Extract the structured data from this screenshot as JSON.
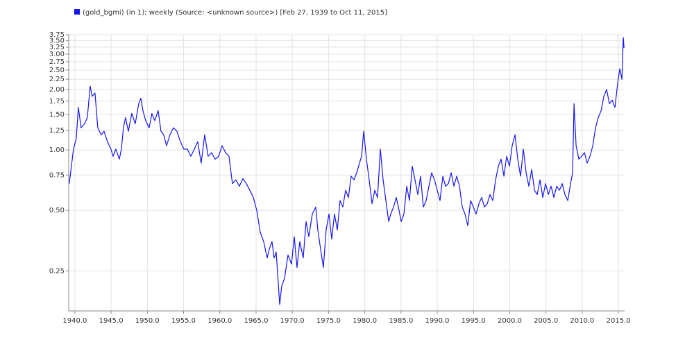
{
  "chart_data": {
    "type": "line",
    "x": [
      1939.23,
      1939.52,
      1939.81,
      1940.19,
      1940.48,
      1940.86,
      1941.34,
      1941.72,
      1942.11,
      1942.39,
      1942.78,
      1943.16,
      1943.64,
      1944.02,
      1944.5,
      1944.98,
      1945.27,
      1945.65,
      1946.13,
      1946.42,
      1946.7,
      1946.99,
      1947.38,
      1947.85,
      1948.33,
      1948.81,
      1949.1,
      1949.39,
      1949.77,
      1950.25,
      1950.63,
      1951.02,
      1951.49,
      1951.88,
      1952.26,
      1952.64,
      1953.12,
      1953.6,
      1954.08,
      1954.56,
      1955.04,
      1955.52,
      1956.0,
      1956.48,
      1956.95,
      1957.43,
      1957.91,
      1958.39,
      1958.87,
      1959.35,
      1959.83,
      1960.31,
      1960.79,
      1961.26,
      1961.74,
      1962.22,
      1962.7,
      1963.18,
      1963.66,
      1964.14,
      1964.62,
      1965.1,
      1965.57,
      1966.05,
      1966.53,
      1966.82,
      1967.2,
      1967.49,
      1967.78,
      1968.26,
      1968.54,
      1968.93,
      1969.41,
      1969.89,
      1970.27,
      1970.65,
      1971.03,
      1971.51,
      1971.9,
      1972.28,
      1972.76,
      1973.24,
      1973.52,
      1973.91,
      1974.29,
      1974.67,
      1975.06,
      1975.44,
      1975.82,
      1976.21,
      1976.59,
      1976.97,
      1977.36,
      1977.74,
      1978.12,
      1978.51,
      1978.89,
      1979.27,
      1979.56,
      1979.85,
      1980.23,
      1980.61,
      1981.0,
      1981.38,
      1981.76,
      1982.15,
      1982.53,
      1982.91,
      1983.3,
      1983.58,
      1983.97,
      1984.35,
      1984.64,
      1985.02,
      1985.4,
      1985.79,
      1986.17,
      1986.55,
      1986.93,
      1987.32,
      1987.7,
      1988.08,
      1988.47,
      1988.85,
      1989.23,
      1989.62,
      1990.0,
      1990.38,
      1990.77,
      1991.15,
      1991.53,
      1991.92,
      1992.3,
      1992.68,
      1993.07,
      1993.45,
      1993.83,
      1994.21,
      1994.6,
      1994.98,
      1995.36,
      1995.75,
      1996.13,
      1996.51,
      1996.9,
      1997.28,
      1997.66,
      1998.05,
      1998.43,
      1998.81,
      1999.2,
      1999.58,
      1999.96,
      2000.34,
      2000.73,
      2001.11,
      2001.49,
      2001.88,
      2002.26,
      2002.64,
      2003.03,
      2003.41,
      2003.79,
      2004.18,
      2004.56,
      2004.94,
      2005.33,
      2005.71,
      2006.09,
      2006.48,
      2006.86,
      2007.24,
      2007.62,
      2008.01,
      2008.39,
      2008.68,
      2008.87,
      2009.16,
      2009.54,
      2009.92,
      2010.31,
      2010.69,
      2011.07,
      2011.46,
      2011.84,
      2012.22,
      2012.61,
      2012.99,
      2013.37,
      2013.75,
      2014.14,
      2014.52,
      2014.9,
      2015.19,
      2015.48,
      2015.67,
      2015.77
    ],
    "series": [
      {
        "name": "(gold_bgmi) (in 1); weekly (Source: <unknown source>) [Feb 27, 1939 to Oct 11, 2015]",
        "color": "#1414f0",
        "values": [
          0.68,
          0.83,
          1.01,
          1.14,
          1.63,
          1.29,
          1.35,
          1.45,
          2.08,
          1.85,
          1.92,
          1.29,
          1.19,
          1.24,
          1.1,
          1.01,
          0.93,
          1.01,
          0.9,
          1.01,
          1.29,
          1.45,
          1.24,
          1.52,
          1.35,
          1.7,
          1.81,
          1.57,
          1.4,
          1.29,
          1.52,
          1.4,
          1.57,
          1.24,
          1.19,
          1.05,
          1.19,
          1.29,
          1.24,
          1.1,
          1.01,
          1.01,
          0.93,
          1.01,
          1.1,
          0.86,
          1.19,
          0.93,
          0.97,
          0.9,
          0.93,
          1.05,
          0.97,
          0.93,
          0.68,
          0.71,
          0.66,
          0.72,
          0.68,
          0.63,
          0.58,
          0.5,
          0.39,
          0.35,
          0.29,
          0.32,
          0.35,
          0.29,
          0.31,
          0.17,
          0.21,
          0.23,
          0.3,
          0.27,
          0.37,
          0.26,
          0.35,
          0.29,
          0.44,
          0.37,
          0.48,
          0.52,
          0.4,
          0.32,
          0.26,
          0.4,
          0.48,
          0.36,
          0.48,
          0.4,
          0.56,
          0.52,
          0.63,
          0.58,
          0.74,
          0.71,
          0.77,
          0.86,
          0.93,
          1.24,
          0.9,
          0.71,
          0.54,
          0.63,
          0.58,
          1.01,
          0.71,
          0.56,
          0.44,
          0.48,
          0.52,
          0.58,
          0.52,
          0.44,
          0.48,
          0.66,
          0.56,
          0.83,
          0.71,
          0.6,
          0.74,
          0.52,
          0.56,
          0.66,
          0.77,
          0.71,
          0.63,
          0.56,
          0.74,
          0.66,
          0.68,
          0.77,
          0.66,
          0.74,
          0.66,
          0.52,
          0.48,
          0.42,
          0.56,
          0.52,
          0.48,
          0.54,
          0.58,
          0.52,
          0.54,
          0.6,
          0.56,
          0.71,
          0.83,
          0.9,
          0.74,
          0.93,
          0.83,
          1.05,
          1.19,
          0.9,
          0.74,
          1.01,
          0.77,
          0.66,
          0.8,
          0.63,
          0.6,
          0.71,
          0.58,
          0.68,
          0.6,
          0.66,
          0.58,
          0.66,
          0.63,
          0.68,
          0.6,
          0.56,
          0.68,
          0.77,
          1.7,
          1.05,
          0.9,
          0.93,
          0.97,
          0.86,
          0.93,
          1.05,
          1.29,
          1.45,
          1.57,
          1.85,
          2.0,
          1.7,
          1.77,
          1.63,
          2.16,
          2.54,
          2.25,
          3.63,
          3.22
        ]
      }
    ],
    "xlim": [
      1939.15,
      2015.85
    ],
    "xticks": [
      {
        "value": 1940,
        "label": "1940.0"
      },
      {
        "value": 1945,
        "label": "1945.0"
      },
      {
        "value": 1950,
        "label": "1950.0"
      },
      {
        "value": 1955,
        "label": "1955.0"
      },
      {
        "value": 1960,
        "label": "1960.0"
      },
      {
        "value": 1965,
        "label": "1965.0"
      },
      {
        "value": 1970,
        "label": "1970.0"
      },
      {
        "value": 1975,
        "label": "1975.0"
      },
      {
        "value": 1980,
        "label": "1980.0"
      },
      {
        "value": 1985,
        "label": "1985.0"
      },
      {
        "value": 1990,
        "label": "1990.0"
      },
      {
        "value": 1995,
        "label": "1995.0"
      },
      {
        "value": 2000,
        "label": "2000.0"
      },
      {
        "value": 2005,
        "label": "2005.0"
      },
      {
        "value": 2010,
        "label": "2010.0"
      },
      {
        "value": 2015,
        "label": "2015.0"
      }
    ],
    "ylim": [
      0.158,
      3.75
    ],
    "yticks": [
      0.25,
      {
        "value": 0.5,
        "label": "0.50"
      },
      0.75,
      {
        "value": 1,
        "label": "1.00"
      },
      1.25,
      {
        "value": 1.5,
        "label": "1.50"
      },
      1.75,
      {
        "value": 2,
        "label": "2.00"
      },
      2.25,
      {
        "value": 2.5,
        "label": "2.50"
      },
      2.75,
      {
        "value": 3,
        "label": "3.00"
      },
      3.25,
      {
        "value": 3.5,
        "label": "3.50"
      },
      3.75
    ],
    "log_y": true,
    "grid": true
  }
}
